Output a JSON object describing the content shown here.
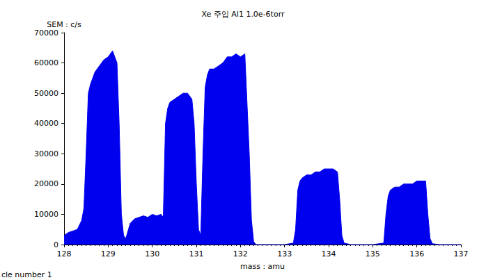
{
  "chart_data": {
    "type": "area",
    "title": "Xe 주입 Al1 1.0e-6torr",
    "x_label": "mass : amu",
    "y_label": "SEM : c/s",
    "annotations": [
      "cle number 1"
    ],
    "color": "#0000ee",
    "grid": false,
    "xlim": [
      128,
      137
    ],
    "xticks": [
      128,
      129,
      130,
      131,
      132,
      133,
      134,
      135,
      136,
      137
    ],
    "ylim": [
      0,
      70000
    ],
    "yticks": [
      0,
      10000,
      20000,
      30000,
      40000,
      50000,
      60000,
      70000
    ],
    "x": [
      128.0,
      128.1,
      128.2,
      128.3,
      128.4,
      128.45,
      128.5,
      128.55,
      128.6,
      128.7,
      128.8,
      128.9,
      129.0,
      129.1,
      129.2,
      129.25,
      129.3,
      129.35,
      129.4,
      129.5,
      129.6,
      129.7,
      129.8,
      129.9,
      130.0,
      130.1,
      130.2,
      130.25,
      130.3,
      130.35,
      130.4,
      130.5,
      130.6,
      130.7,
      130.8,
      130.9,
      130.95,
      131.0,
      131.05,
      131.1,
      131.15,
      131.2,
      131.25,
      131.3,
      131.4,
      131.5,
      131.6,
      131.7,
      131.8,
      131.9,
      132.0,
      132.1,
      132.2,
      132.25,
      132.3,
      132.35,
      132.5,
      133.0,
      133.2,
      133.25,
      133.3,
      133.35,
      133.4,
      133.5,
      133.6,
      133.7,
      133.8,
      133.9,
      134.0,
      134.1,
      134.2,
      134.25,
      134.3,
      134.35,
      134.5,
      135.0,
      135.25,
      135.3,
      135.35,
      135.4,
      135.5,
      135.6,
      135.7,
      135.8,
      135.9,
      136.0,
      136.1,
      136.2,
      136.25,
      136.3,
      136.35,
      136.5,
      137.0
    ],
    "values": [
      3000,
      4000,
      4500,
      5000,
      8000,
      12000,
      30000,
      50000,
      53000,
      57000,
      59000,
      61000,
      62000,
      64000,
      60000,
      40000,
      10000,
      3000,
      2000,
      7000,
      8500,
      9000,
      9500,
      9000,
      10000,
      9500,
      10000,
      9000,
      40000,
      45000,
      47000,
      48000,
      49000,
      50000,
      50000,
      48000,
      40000,
      20000,
      5000,
      3000,
      30000,
      52000,
      56000,
      58000,
      58000,
      59000,
      60000,
      62000,
      62000,
      63000,
      62000,
      63000,
      30000,
      8000,
      1000,
      0,
      0,
      0,
      500,
      5000,
      18000,
      21000,
      22000,
      23000,
      23000,
      24000,
      24000,
      25000,
      25000,
      25000,
      24000,
      15000,
      3000,
      500,
      0,
      0,
      500,
      10000,
      16000,
      18000,
      19000,
      19000,
      20000,
      20000,
      20000,
      21000,
      21000,
      21000,
      10000,
      2000,
      300,
      0,
      0
    ]
  }
}
